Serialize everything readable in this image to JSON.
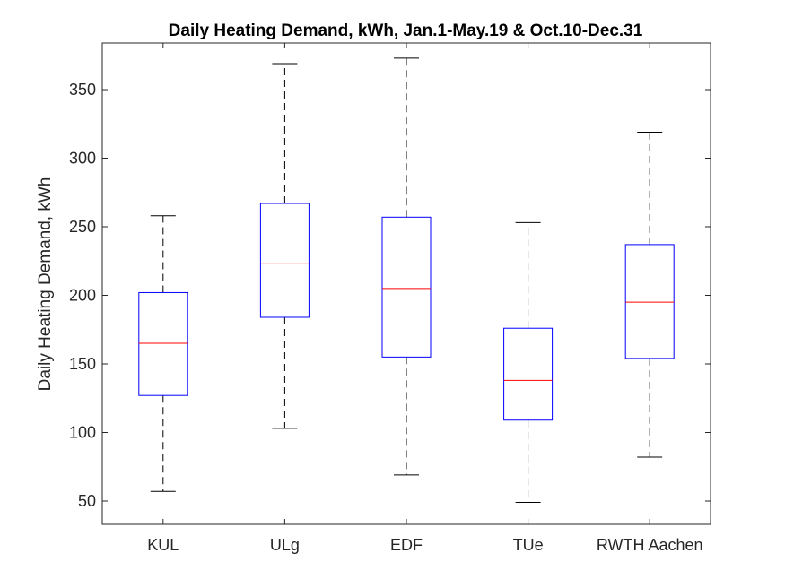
{
  "chart_data": {
    "type": "box",
    "title": "Daily Heating Demand, kWh, Jan.1-May.19 & Oct.10-Dec.31",
    "xlabel": "",
    "ylabel": "Daily Heating Demand, kWh",
    "ylim": [
      33,
      384
    ],
    "yticks": [
      50,
      100,
      150,
      200,
      250,
      300,
      350
    ],
    "categories": [
      "KUL",
      "ULg",
      "EDF",
      "TUe",
      "RWTH Aachen"
    ],
    "boxes": [
      {
        "category": "KUL",
        "whisker_low": 57,
        "q1": 127,
        "median": 165,
        "q3": 202,
        "whisker_high": 258
      },
      {
        "category": "ULg",
        "whisker_low": 103,
        "q1": 184,
        "median": 223,
        "q3": 267,
        "whisker_high": 369
      },
      {
        "category": "EDF",
        "whisker_low": 69,
        "q1": 155,
        "median": 205,
        "q3": 257,
        "whisker_high": 373
      },
      {
        "category": "TUe",
        "whisker_low": 49,
        "q1": 109,
        "median": 138,
        "q3": 176,
        "whisker_high": 253
      },
      {
        "category": "RWTH Aachen",
        "whisker_low": 82,
        "q1": 154,
        "median": 195,
        "q3": 237,
        "whisker_high": 319
      }
    ],
    "colors": {
      "box": "#0000ff",
      "median": "#ff0000",
      "whisker": "#000000",
      "axes": "#262626"
    },
    "grid": false
  }
}
